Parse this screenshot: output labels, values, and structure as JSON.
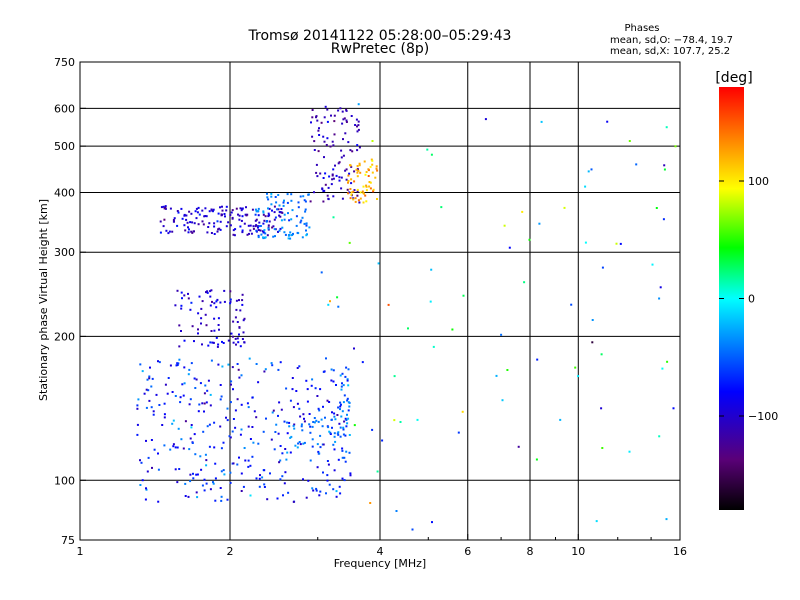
{
  "header": {
    "title_line1": "Tromsø 20141122 05:28:00–05:29:43",
    "title_line2": "RwPretec (8p)",
    "phase_title": "Phases",
    "phase_o": "mean, sd,O: −78.4, 19.7",
    "phase_x": "mean, sd,X: 107.7, 25.2"
  },
  "colorbar": {
    "unit": "[deg]",
    "ticks": [
      {
        "label": "100",
        "value": 100
      },
      {
        "label": "0",
        "value": 0
      },
      {
        "label": "−100",
        "value": -100
      }
    ],
    "range": [
      -180,
      180
    ]
  },
  "chart_data": {
    "type": "scatter",
    "title": "Tromsø 20141122 05:28:00–05:29:43",
    "subtitle": "RwPretec (8p)",
    "xlabel": "Frequency [MHz]",
    "ylabel": "Stationary phase Virtual Height [km]",
    "xscale": "log",
    "yscale": "log",
    "xlim": [
      1,
      16
    ],
    "ylim": [
      75,
      750
    ],
    "x_ticks": [
      {
        "value": 1,
        "label": "1"
      },
      {
        "value": 2,
        "label": "2"
      },
      {
        "value": 4,
        "label": "4"
      },
      {
        "value": 6,
        "label": "6"
      },
      {
        "value": 8,
        "label": "8"
      },
      {
        "value": 10,
        "label": "10"
      },
      {
        "value": 16,
        "label": "16"
      }
    ],
    "y_ticks": [
      {
        "value": 75,
        "label": "75"
      },
      {
        "value": 100,
        "label": "100"
      },
      {
        "value": 200,
        "label": "200"
      },
      {
        "value": 300,
        "label": "300"
      },
      {
        "value": 400,
        "label": "400"
      },
      {
        "value": 500,
        "label": "500"
      },
      {
        "value": 600,
        "label": "600"
      },
      {
        "value": 750,
        "label": "750"
      }
    ],
    "x_gridlines": [
      2,
      4,
      6,
      8,
      10
    ],
    "y_gridlines": [
      100,
      200,
      300,
      400,
      500,
      600
    ],
    "grid": true,
    "color_variable": "phase [deg]",
    "clusters": [
      {
        "name": "",
        "freq_range": [
          1.45,
          2.55
        ],
        "height_range": [
          325,
          375
        ],
        "phase_center": -100,
        "phase_spread": 25,
        "count": 170
      },
      {
        "name": "",
        "freq_range": [
          2.25,
          2.9
        ],
        "height_range": [
          320,
          400
        ],
        "phase_center": -40,
        "phase_spread": 20,
        "count": 90
      },
      {
        "name": "",
        "freq_range": [
          2.9,
          3.65
        ],
        "height_range": [
          380,
          610
        ],
        "phase_center": -110,
        "phase_spread": 25,
        "count": 110
      },
      {
        "name": "",
        "freq_range": [
          3.45,
          3.95
        ],
        "height_range": [
          380,
          470
        ],
        "phase_center": 120,
        "phase_spread": 25,
        "count": 60
      },
      {
        "name": "",
        "freq_range": [
          1.55,
          2.15
        ],
        "height_range": [
          190,
          250
        ],
        "phase_center": -100,
        "phase_spread": 25,
        "count": 90
      },
      {
        "name": "",
        "freq_range": [
          1.3,
          3.5
        ],
        "height_range": [
          90,
          180
        ],
        "phase_center": -70,
        "phase_spread": 40,
        "count": 360
      },
      {
        "name": "",
        "freq_range": [
          3.3,
          3.5
        ],
        "height_range": [
          110,
          170
        ],
        "phase_center": -40,
        "phase_spread": 30,
        "count": 30
      },
      {
        "name": "",
        "freq_range": [
          2.6,
          3.3
        ],
        "height_range": [
          118,
          135
        ],
        "phase_center": -40,
        "phase_spread": 20,
        "count": 40
      },
      {
        "name": "",
        "freq_range": [
          3.0,
          16
        ],
        "height_range": [
          78,
          640
        ],
        "phase_center": 0,
        "phase_spread": 120,
        "count": 90
      }
    ]
  }
}
